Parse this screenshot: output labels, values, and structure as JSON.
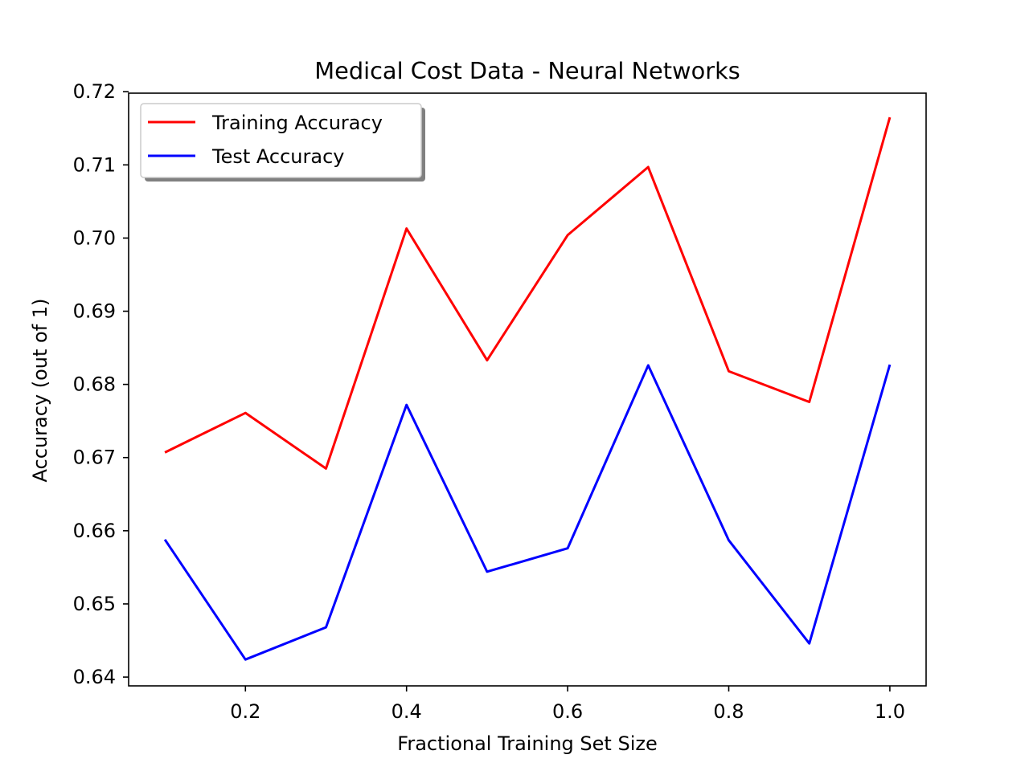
{
  "chart_data": {
    "type": "line",
    "title": "Medical Cost Data - Neural Networks",
    "xlabel": "Fractional Training Set Size",
    "ylabel": "Accuracy (out of 1)",
    "x": [
      0.1,
      0.2,
      0.3,
      0.4,
      0.5,
      0.6,
      0.7,
      0.8,
      0.9,
      1.0
    ],
    "xlim": [
      0.055,
      1.045
    ],
    "ylim": [
      0.6388,
      0.7198
    ],
    "xticks": [
      0.2,
      0.4,
      0.6,
      0.8,
      1.0
    ],
    "xtick_labels": [
      "0.2",
      "0.4",
      "0.6",
      "0.8",
      "1.0"
    ],
    "yticks": [
      0.64,
      0.65,
      0.66,
      0.67,
      0.68,
      0.69,
      0.7,
      0.71,
      0.72
    ],
    "ytick_labels": [
      "0.64",
      "0.65",
      "0.66",
      "0.67",
      "0.68",
      "0.69",
      "0.70",
      "0.71",
      "0.72"
    ],
    "grid": false,
    "legend_position": "top-left",
    "series": [
      {
        "name": "Training Accuracy",
        "color": "#ff0000",
        "values": [
          0.6707,
          0.6761,
          0.6685,
          0.7013,
          0.6833,
          0.7004,
          0.7097,
          0.6818,
          0.6776,
          0.7165
        ]
      },
      {
        "name": "Test Accuracy",
        "color": "#0000ff",
        "values": [
          0.6588,
          0.6424,
          0.6468,
          0.6772,
          0.6544,
          0.6576,
          0.6826,
          0.6587,
          0.6446,
          0.6827
        ]
      }
    ]
  }
}
